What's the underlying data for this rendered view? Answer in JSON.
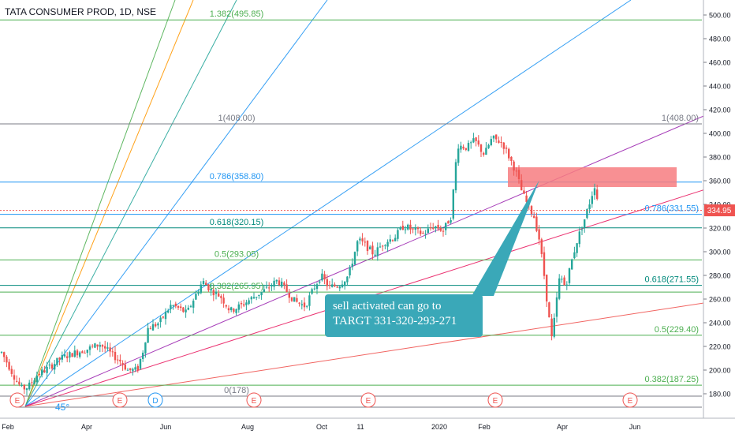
{
  "header": {
    "symbol_title": "TATA CONSUMER PROD, 1D, NSE"
  },
  "colors": {
    "bull": "#26a69a",
    "bear": "#ef5350",
    "fib_green": "#4caf50",
    "fib_teal": "#00897b",
    "fib_gray": "#787b86",
    "fib_blue": "#2196f3",
    "sell_zone": "#f77c80",
    "price_tag": "#ef5350",
    "callout": "#3aa8b8"
  },
  "chart_data": {
    "type": "candlestick",
    "y_axis": {
      "ylim": [
        175,
        505
      ],
      "ticks": [
        180,
        200,
        220,
        240,
        260,
        280,
        300,
        320,
        340,
        360,
        380,
        400,
        420,
        440,
        460,
        480,
        500
      ]
    },
    "x_axis": {
      "labels": [
        "Feb",
        "Apr",
        "Jun",
        "Aug",
        "Oct",
        "11",
        "2020",
        "Feb",
        "Apr",
        "Jun"
      ]
    },
    "last_price": {
      "value": 334.95,
      "label": "334.95"
    },
    "fib_levels": [
      {
        "label": "1.382(495.85)",
        "value": 495.85,
        "color": "green"
      },
      {
        "label": "1(408.00)",
        "value": 408.0,
        "color": "gray"
      },
      {
        "label": "0.786(358.80)",
        "value": 358.8,
        "color": "blue"
      },
      {
        "label": "0.618(320.15)",
        "value": 320.15,
        "color": "teal"
      },
      {
        "label": "0.5(293.05)",
        "value": 293.05,
        "color": "green"
      },
      {
        "label": "0.382(265.95)",
        "value": 265.95,
        "color": "green"
      },
      {
        "label": "0(178)",
        "value": 178,
        "color": "gray"
      }
    ],
    "fib_levels_right": [
      {
        "label": "1(408.00)",
        "value": 408.0,
        "color": "gray"
      },
      {
        "label": "0.786(331.55)",
        "value": 331.55,
        "color": "blue"
      },
      {
        "label": "0.618(271.55)",
        "value": 271.55,
        "color": "teal"
      },
      {
        "label": "0.5(229.40)",
        "value": 229.4,
        "color": "green"
      },
      {
        "label": "0.382(187.25)",
        "value": 187.25,
        "color": "green"
      }
    ],
    "earnings_markers": [
      "E",
      "E",
      "D",
      "E",
      "E",
      "E",
      "E"
    ],
    "gann_angle_label": "45°",
    "annotation": {
      "line1": "sell activated can go to",
      "line2": "TARGT  331-320-293-271"
    },
    "price_series": [
      {
        "t": 0,
        "v": 215
      },
      {
        "t": 8,
        "v": 205
      },
      {
        "t": 18,
        "v": 192
      },
      {
        "t": 26,
        "v": 184
      },
      {
        "t": 34,
        "v": 186
      },
      {
        "t": 45,
        "v": 196
      },
      {
        "t": 60,
        "v": 202
      },
      {
        "t": 75,
        "v": 210
      },
      {
        "t": 90,
        "v": 214
      },
      {
        "t": 110,
        "v": 218
      },
      {
        "t": 125,
        "v": 222
      },
      {
        "t": 140,
        "v": 213
      },
      {
        "t": 150,
        "v": 208
      },
      {
        "t": 160,
        "v": 200
      },
      {
        "t": 172,
        "v": 200
      },
      {
        "t": 180,
        "v": 218
      },
      {
        "t": 185,
        "v": 235
      },
      {
        "t": 200,
        "v": 240
      },
      {
        "t": 215,
        "v": 255
      },
      {
        "t": 225,
        "v": 252
      },
      {
        "t": 235,
        "v": 248
      },
      {
        "t": 245,
        "v": 262
      },
      {
        "t": 255,
        "v": 275
      },
      {
        "t": 265,
        "v": 268
      },
      {
        "t": 278,
        "v": 262
      },
      {
        "t": 290,
        "v": 250
      },
      {
        "t": 305,
        "v": 255
      },
      {
        "t": 320,
        "v": 262
      },
      {
        "t": 335,
        "v": 268
      },
      {
        "t": 350,
        "v": 276
      },
      {
        "t": 360,
        "v": 268
      },
      {
        "t": 372,
        "v": 258
      },
      {
        "t": 385,
        "v": 254
      },
      {
        "t": 395,
        "v": 268
      },
      {
        "t": 405,
        "v": 280
      },
      {
        "t": 415,
        "v": 270
      },
      {
        "t": 428,
        "v": 272
      },
      {
        "t": 440,
        "v": 280
      },
      {
        "t": 452,
        "v": 310
      },
      {
        "t": 462,
        "v": 305
      },
      {
        "t": 472,
        "v": 298
      },
      {
        "t": 485,
        "v": 308
      },
      {
        "t": 498,
        "v": 312
      },
      {
        "t": 510,
        "v": 322
      },
      {
        "t": 522,
        "v": 318
      },
      {
        "t": 535,
        "v": 315
      },
      {
        "t": 548,
        "v": 322
      },
      {
        "t": 560,
        "v": 318
      },
      {
        "t": 570,
        "v": 330
      },
      {
        "t": 578,
        "v": 390
      },
      {
        "t": 590,
        "v": 388
      },
      {
        "t": 600,
        "v": 394
      },
      {
        "t": 612,
        "v": 382
      },
      {
        "t": 622,
        "v": 396
      },
      {
        "t": 635,
        "v": 392
      },
      {
        "t": 645,
        "v": 378
      },
      {
        "t": 652,
        "v": 368
      },
      {
        "t": 660,
        "v": 350
      },
      {
        "t": 668,
        "v": 338
      },
      {
        "t": 675,
        "v": 330
      },
      {
        "t": 682,
        "v": 310
      },
      {
        "t": 688,
        "v": 280
      },
      {
        "t": 693,
        "v": 250
      },
      {
        "t": 698,
        "v": 225
      },
      {
        "t": 703,
        "v": 255
      },
      {
        "t": 708,
        "v": 280
      },
      {
        "t": 715,
        "v": 270
      },
      {
        "t": 722,
        "v": 290
      },
      {
        "t": 730,
        "v": 310
      },
      {
        "t": 738,
        "v": 325
      },
      {
        "t": 745,
        "v": 340
      },
      {
        "t": 752,
        "v": 356
      },
      {
        "t": 758,
        "v": 336
      }
    ]
  }
}
